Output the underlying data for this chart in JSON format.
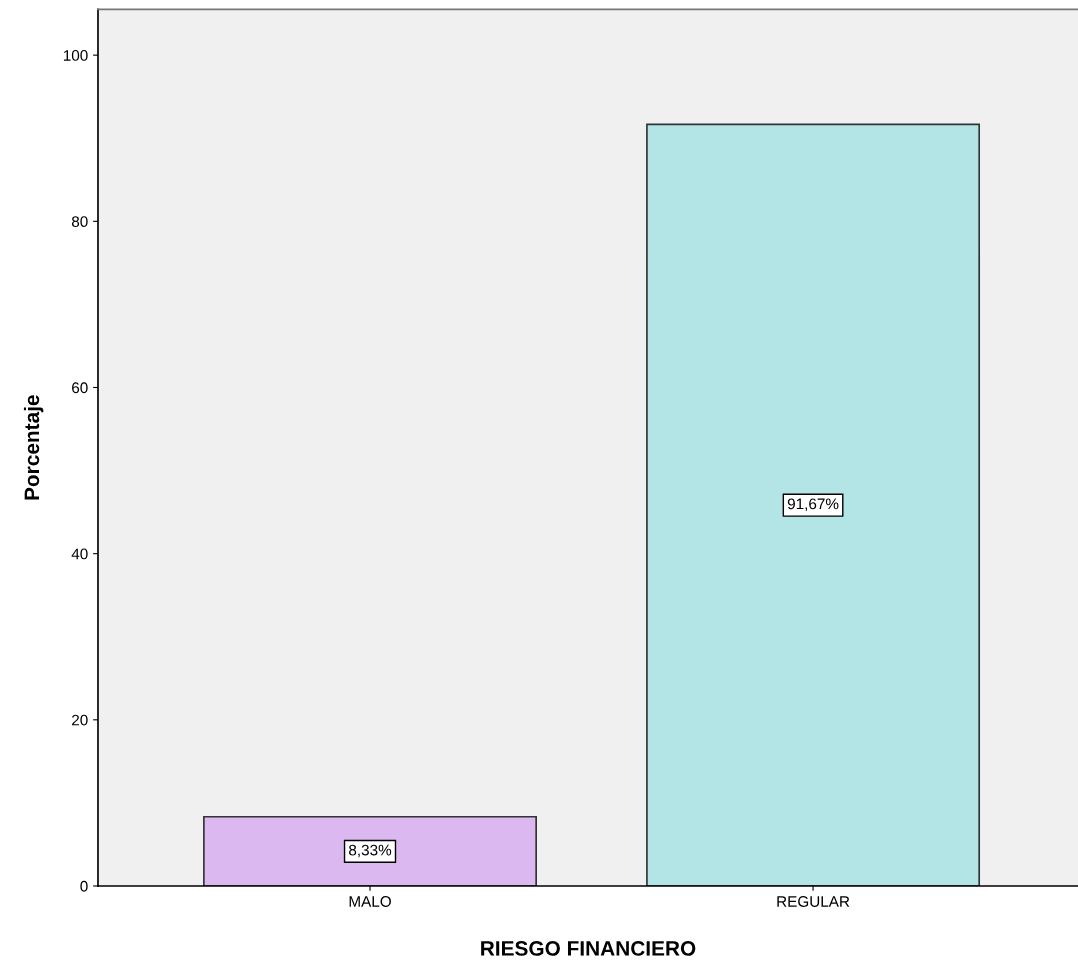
{
  "chart_data": {
    "type": "bar",
    "xlabel": "RIESGO FINANCIERO",
    "ylabel": "Porcentaje",
    "categories": [
      "MALO",
      "REGULAR"
    ],
    "values": [
      8.33,
      91.67
    ],
    "colors": [
      "#dcb8f0",
      "#b3e4e6"
    ],
    "value_labels": [
      "8,33%",
      "91,67%"
    ],
    "ylim": [
      0,
      105.5
    ],
    "yticks": [
      0,
      20,
      40,
      60,
      80,
      100
    ],
    "grid": false
  }
}
